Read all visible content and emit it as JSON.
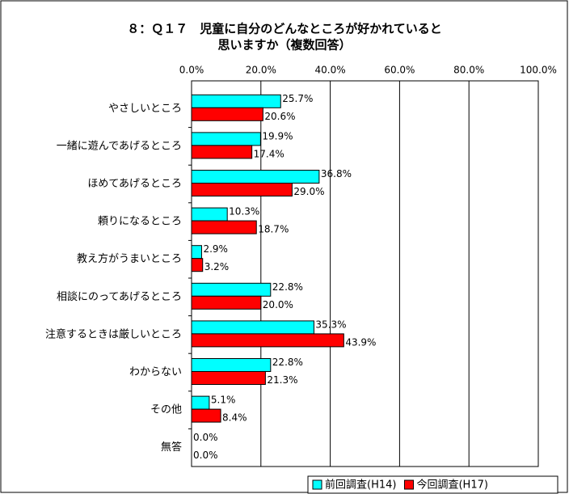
{
  "chart_data": {
    "type": "hbar",
    "title": [
      "８：Ｑ１７　児童に自分のどんなところが好かれていると",
      "思いますか（複数回答）"
    ],
    "categories": [
      "やさしいところ",
      "一緒に遊んであげるところ",
      "ほめてあげるところ",
      "頼りになるところ",
      "教え方がうまいところ",
      "相談にのってあげるところ",
      "注意するときは厳しいところ",
      "わからない",
      "その他",
      "無答"
    ],
    "series": [
      {
        "name": "前回調査(H14)",
        "color": "#00ffff",
        "values": [
          25.7,
          19.9,
          36.8,
          10.3,
          2.9,
          22.8,
          35.3,
          22.8,
          5.1,
          0.0
        ],
        "value_labels": [
          "25.7%",
          "19.9%",
          "36.8%",
          "10.3%",
          "2.9%",
          "22.8%",
          "35.3%",
          "22.8%",
          "5.1%",
          "0.0%"
        ]
      },
      {
        "name": "今回調査(H17)",
        "color": "#ff0000",
        "values": [
          20.6,
          17.4,
          29.0,
          18.7,
          3.2,
          20.0,
          43.9,
          21.3,
          8.4,
          0.0
        ],
        "value_labels": [
          "20.6%",
          "17.4%",
          "29.0%",
          "18.7%",
          "3.2%",
          "20.0%",
          "43.9%",
          "21.3%",
          "8.4%",
          "0.0%"
        ]
      }
    ],
    "xlim": [
      0,
      100
    ],
    "xticks": [
      {
        "value": 0,
        "label": "0.0%"
      },
      {
        "value": 20,
        "label": "20.0%"
      },
      {
        "value": 40,
        "label": "40.0%"
      },
      {
        "value": 60,
        "label": "60.0%"
      },
      {
        "value": 80,
        "label": "80.0%"
      },
      {
        "value": 100,
        "label": "100.0%"
      }
    ],
    "grid": true,
    "legend": "bottom-right"
  }
}
